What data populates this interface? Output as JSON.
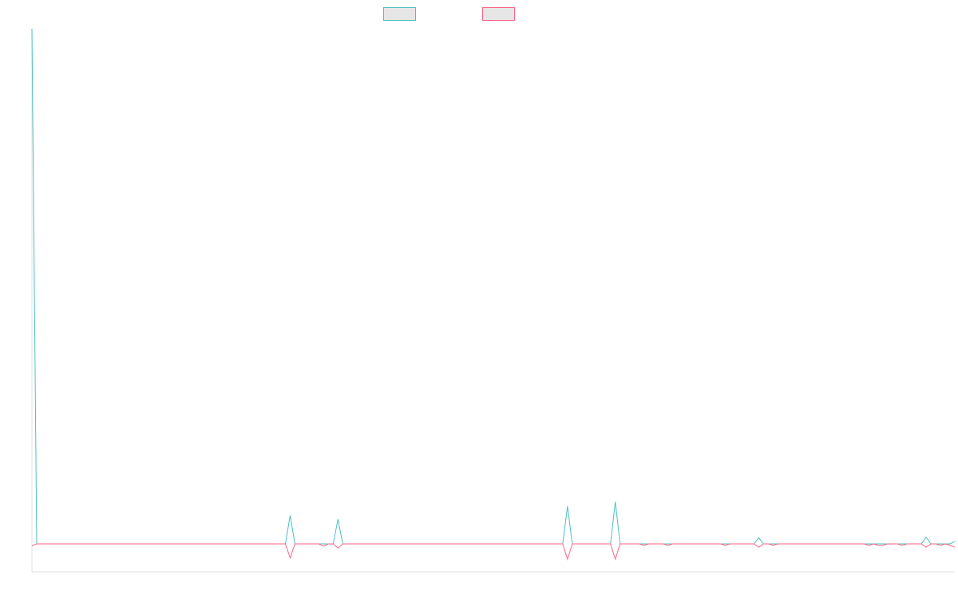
{
  "chart_data": {
    "type": "line",
    "title": "",
    "xlabel": "",
    "ylabel": "",
    "grid": false,
    "legend_position": "top-center",
    "x_count": 193,
    "y_range": [
      -100,
      1000
    ],
    "baseline": 0,
    "series": [
      {
        "name": "",
        "color": "#4bc0c0",
        "fill": "#e6e6e6",
        "deviations": [
          [
            0,
            1000
          ],
          [
            54,
            55
          ],
          [
            64,
            48
          ],
          [
            112,
            73
          ],
          [
            122,
            82
          ],
          [
            128,
            0
          ],
          [
            133,
            0
          ],
          [
            138,
            0
          ],
          [
            139,
            0
          ],
          [
            145,
            0
          ],
          [
            152,
            12
          ],
          [
            155,
            0
          ],
          [
            172,
            0
          ],
          [
            175,
            0
          ],
          [
            177,
            0
          ],
          [
            178,
            0
          ],
          [
            182,
            0
          ],
          [
            187,
            13
          ],
          [
            190,
            0
          ],
          [
            192,
            0
          ],
          [
            193,
            5
          ]
        ]
      },
      {
        "name": "",
        "color": "#ff6384",
        "fill": "#e6e6e6",
        "deviations": [
          [
            0,
            -7
          ],
          [
            54,
            -50
          ],
          [
            61,
            -8
          ],
          [
            64,
            -15
          ],
          [
            112,
            -55
          ],
          [
            122,
            -55
          ],
          [
            128,
            -5
          ],
          [
            133,
            -5
          ],
          [
            145,
            -5
          ],
          [
            152,
            -12
          ],
          [
            155,
            -5
          ],
          [
            175,
            -5
          ],
          [
            177,
            -5
          ],
          [
            178,
            -5
          ],
          [
            182,
            -5
          ],
          [
            187,
            -12
          ],
          [
            190,
            -5
          ],
          [
            192,
            -5
          ],
          [
            193,
            -12
          ]
        ]
      }
    ]
  }
}
